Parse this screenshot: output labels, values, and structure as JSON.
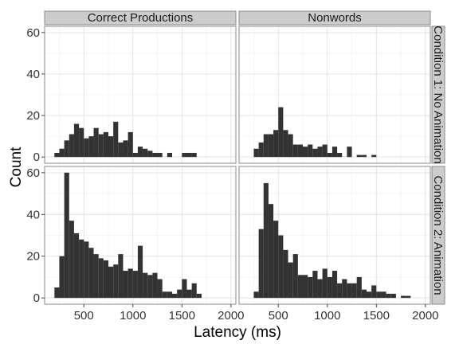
{
  "chart_data": {
    "type": "bar",
    "subtype": "faceted-histogram",
    "xlabel": "Latency (ms)",
    "ylabel": "Count",
    "xlim": [
      100,
      2050
    ],
    "ylim": [
      -3,
      63
    ],
    "x_ticks": [
      500,
      1000,
      1500,
      2000
    ],
    "y_ticks": [
      0,
      20,
      40,
      60
    ],
    "bin_width": 50,
    "grid": true,
    "bar_color": "#333333",
    "columns": [
      "Correct Productions",
      "Nonwords"
    ],
    "rows": [
      "Condition 1: No Animation",
      "Condition 2: Animation"
    ],
    "panels": [
      {
        "column": "Correct Productions",
        "row": "Condition 1: No Animation",
        "bins": [
          {
            "x": 225,
            "count": 2
          },
          {
            "x": 275,
            "count": 4
          },
          {
            "x": 325,
            "count": 8
          },
          {
            "x": 375,
            "count": 11
          },
          {
            "x": 425,
            "count": 16
          },
          {
            "x": 475,
            "count": 14
          },
          {
            "x": 525,
            "count": 9
          },
          {
            "x": 575,
            "count": 10
          },
          {
            "x": 625,
            "count": 14
          },
          {
            "x": 675,
            "count": 11
          },
          {
            "x": 725,
            "count": 12
          },
          {
            "x": 775,
            "count": 10
          },
          {
            "x": 825,
            "count": 17
          },
          {
            "x": 875,
            "count": 7
          },
          {
            "x": 925,
            "count": 8
          },
          {
            "x": 975,
            "count": 12
          },
          {
            "x": 1025,
            "count": 2
          },
          {
            "x": 1075,
            "count": 5
          },
          {
            "x": 1125,
            "count": 4
          },
          {
            "x": 1175,
            "count": 3
          },
          {
            "x": 1225,
            "count": 2
          },
          {
            "x": 1275,
            "count": 2
          },
          {
            "x": 1375,
            "count": 2
          },
          {
            "x": 1525,
            "count": 2
          },
          {
            "x": 1575,
            "count": 2
          },
          {
            "x": 1625,
            "count": 2
          }
        ]
      },
      {
        "column": "Nonwords",
        "row": "Condition 1: No Animation",
        "bins": [
          {
            "x": 275,
            "count": 4
          },
          {
            "x": 325,
            "count": 7
          },
          {
            "x": 375,
            "count": 11
          },
          {
            "x": 425,
            "count": 11
          },
          {
            "x": 475,
            "count": 13
          },
          {
            "x": 525,
            "count": 24
          },
          {
            "x": 575,
            "count": 13
          },
          {
            "x": 625,
            "count": 11
          },
          {
            "x": 675,
            "count": 6
          },
          {
            "x": 725,
            "count": 6
          },
          {
            "x": 775,
            "count": 5
          },
          {
            "x": 825,
            "count": 6
          },
          {
            "x": 875,
            "count": 4
          },
          {
            "x": 925,
            "count": 5
          },
          {
            "x": 975,
            "count": 6
          },
          {
            "x": 1025,
            "count": 2
          },
          {
            "x": 1075,
            "count": 5
          },
          {
            "x": 1125,
            "count": 2
          },
          {
            "x": 1225,
            "count": 5
          },
          {
            "x": 1325,
            "count": 1
          },
          {
            "x": 1375,
            "count": 1
          },
          {
            "x": 1475,
            "count": 1
          }
        ]
      },
      {
        "column": "Correct Productions",
        "row": "Condition 2: Animation",
        "bins": [
          {
            "x": 225,
            "count": 5
          },
          {
            "x": 275,
            "count": 20
          },
          {
            "x": 325,
            "count": 60
          },
          {
            "x": 375,
            "count": 37
          },
          {
            "x": 425,
            "count": 31
          },
          {
            "x": 475,
            "count": 28
          },
          {
            "x": 525,
            "count": 27
          },
          {
            "x": 575,
            "count": 24
          },
          {
            "x": 625,
            "count": 21
          },
          {
            "x": 675,
            "count": 19
          },
          {
            "x": 725,
            "count": 18
          },
          {
            "x": 775,
            "count": 15
          },
          {
            "x": 825,
            "count": 16
          },
          {
            "x": 875,
            "count": 21
          },
          {
            "x": 925,
            "count": 13
          },
          {
            "x": 975,
            "count": 14
          },
          {
            "x": 1025,
            "count": 13
          },
          {
            "x": 1075,
            "count": 25
          },
          {
            "x": 1125,
            "count": 12
          },
          {
            "x": 1175,
            "count": 11
          },
          {
            "x": 1225,
            "count": 12
          },
          {
            "x": 1275,
            "count": 9
          },
          {
            "x": 1325,
            "count": 3
          },
          {
            "x": 1375,
            "count": 3
          },
          {
            "x": 1425,
            "count": 2
          },
          {
            "x": 1475,
            "count": 4
          },
          {
            "x": 1525,
            "count": 9
          },
          {
            "x": 1575,
            "count": 4
          },
          {
            "x": 1625,
            "count": 7
          },
          {
            "x": 1675,
            "count": 2
          }
        ]
      },
      {
        "column": "Nonwords",
        "row": "Condition 2: Animation",
        "bins": [
          {
            "x": 275,
            "count": 3
          },
          {
            "x": 325,
            "count": 33
          },
          {
            "x": 375,
            "count": 55
          },
          {
            "x": 425,
            "count": 45
          },
          {
            "x": 475,
            "count": 37
          },
          {
            "x": 525,
            "count": 30
          },
          {
            "x": 575,
            "count": 23
          },
          {
            "x": 625,
            "count": 17
          },
          {
            "x": 675,
            "count": 21
          },
          {
            "x": 725,
            "count": 11
          },
          {
            "x": 775,
            "count": 11
          },
          {
            "x": 825,
            "count": 10
          },
          {
            "x": 875,
            "count": 13
          },
          {
            "x": 925,
            "count": 9
          },
          {
            "x": 975,
            "count": 14
          },
          {
            "x": 1025,
            "count": 10
          },
          {
            "x": 1075,
            "count": 13
          },
          {
            "x": 1125,
            "count": 7
          },
          {
            "x": 1175,
            "count": 9
          },
          {
            "x": 1225,
            "count": 7
          },
          {
            "x": 1275,
            "count": 7
          },
          {
            "x": 1325,
            "count": 10
          },
          {
            "x": 1375,
            "count": 4
          },
          {
            "x": 1425,
            "count": 3
          },
          {
            "x": 1475,
            "count": 6
          },
          {
            "x": 1525,
            "count": 3
          },
          {
            "x": 1575,
            "count": 3
          },
          {
            "x": 1625,
            "count": 2
          },
          {
            "x": 1675,
            "count": 2
          },
          {
            "x": 1775,
            "count": 1
          },
          {
            "x": 1825,
            "count": 1
          }
        ]
      }
    ]
  }
}
